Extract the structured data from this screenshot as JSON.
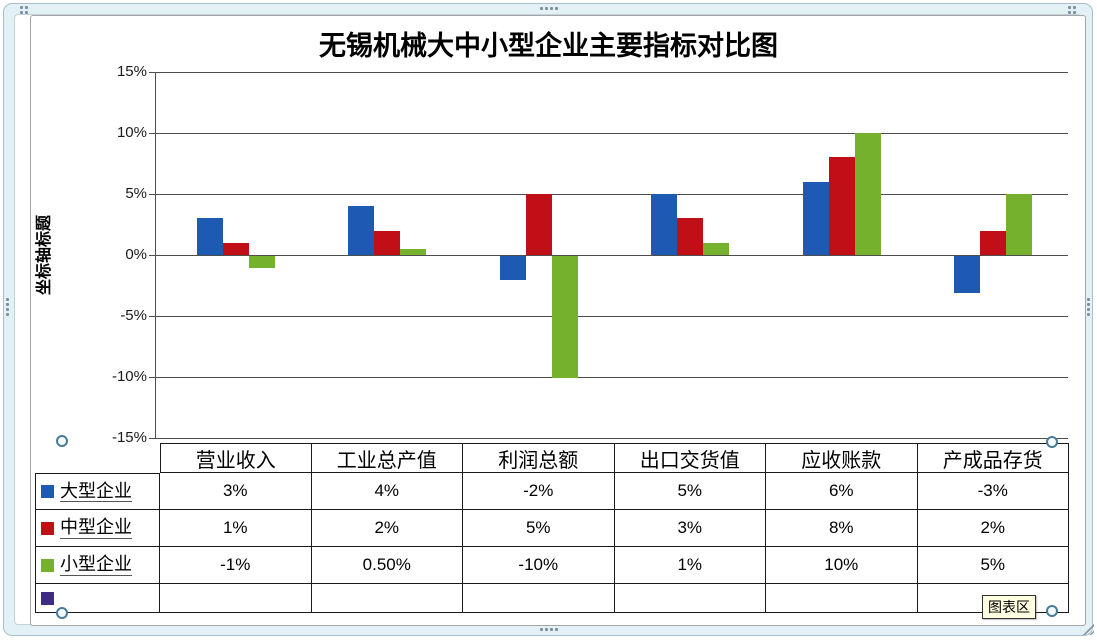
{
  "title": "无锡机械大中小型企业主要指标对比图",
  "axis": {
    "y_title": "坐标轴标题",
    "ticks": [
      "15%",
      "10%",
      "5%",
      "0%",
      "-5%",
      "-10%",
      "-15%"
    ]
  },
  "tooltip": "图表区",
  "colors": {
    "series_large": "#1e5ab4",
    "series_medium": "#c00f16",
    "series_small": "#75b12c",
    "series_extra": "#3e2c85",
    "gridline": "#4d4d4d",
    "tooltip_bg": "#ffffe1",
    "frame": "#e3f0f5"
  },
  "chart_data": {
    "type": "bar",
    "title": "无锡机械大中小型企业主要指标对比图",
    "ylabel": "坐标轴标题",
    "ylim": [
      -15,
      15
    ],
    "ytick_step": 5,
    "grid": true,
    "legend_position": "data-table-below",
    "categories": [
      "营业收入",
      "工业总产值",
      "利润总额",
      "出口交货值",
      "应收账款",
      "产成品存货"
    ],
    "series": [
      {
        "name": "大型企业",
        "color": "#1e5ab4",
        "values": [
          3,
          4,
          -2,
          5,
          6,
          -3
        ],
        "labels": [
          "3%",
          "4%",
          "-2%",
          "5%",
          "6%",
          "-3%"
        ]
      },
      {
        "name": "中型企业",
        "color": "#c00f16",
        "values": [
          1,
          2,
          5,
          3,
          8,
          2
        ],
        "labels": [
          "1%",
          "2%",
          "5%",
          "3%",
          "8%",
          "2%"
        ]
      },
      {
        "name": "小型企业",
        "color": "#75b12c",
        "values": [
          -1,
          0.5,
          -10,
          1,
          10,
          5
        ],
        "labels": [
          "-1%",
          "0.50%",
          "-10%",
          "1%",
          "10%",
          "5%"
        ]
      },
      {
        "name": "",
        "color": "#3e2c85",
        "values": [],
        "labels": [
          "",
          "",
          "",
          "",
          "",
          ""
        ]
      }
    ]
  }
}
